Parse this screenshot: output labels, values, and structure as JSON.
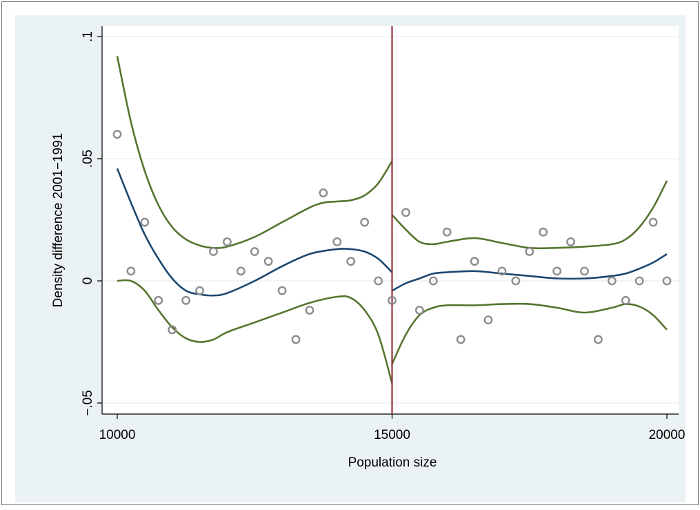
{
  "chart_data": {
    "type": "scatter",
    "title": "",
    "xlabel": "Population size",
    "ylabel": "Density difference 2001−1991",
    "xlim": [
      10000,
      20000
    ],
    "ylim": [
      -0.05,
      0.1
    ],
    "x_ticks": [
      10000,
      15000,
      20000
    ],
    "x_tick_labels": [
      "10000",
      "15000",
      "20000"
    ],
    "y_ticks": [
      -0.05,
      0,
      0.05,
      0.1
    ],
    "y_tick_labels": [
      "−.05",
      "0",
      ".05",
      ".1"
    ],
    "grid": true,
    "legend": "none",
    "cutoff": {
      "x": 15000
    },
    "points": [
      {
        "x": 10000,
        "y": 0.06
      },
      {
        "x": 10250,
        "y": 0.004
      },
      {
        "x": 10500,
        "y": 0.024
      },
      {
        "x": 10750,
        "y": -0.008
      },
      {
        "x": 11000,
        "y": -0.02
      },
      {
        "x": 11250,
        "y": -0.008
      },
      {
        "x": 11500,
        "y": -0.004
      },
      {
        "x": 11750,
        "y": 0.012
      },
      {
        "x": 12000,
        "y": 0.016
      },
      {
        "x": 12250,
        "y": 0.004
      },
      {
        "x": 12500,
        "y": 0.012
      },
      {
        "x": 12750,
        "y": 0.008
      },
      {
        "x": 13000,
        "y": -0.004
      },
      {
        "x": 13250,
        "y": -0.024
      },
      {
        "x": 13500,
        "y": -0.012
      },
      {
        "x": 13750,
        "y": 0.036
      },
      {
        "x": 14000,
        "y": 0.016
      },
      {
        "x": 14250,
        "y": 0.008
      },
      {
        "x": 14500,
        "y": 0.024
      },
      {
        "x": 14750,
        "y": 0.0
      },
      {
        "x": 15000,
        "y": -0.008
      },
      {
        "x": 15250,
        "y": 0.028
      },
      {
        "x": 15500,
        "y": -0.012
      },
      {
        "x": 15750,
        "y": 0.0
      },
      {
        "x": 16000,
        "y": 0.02
      },
      {
        "x": 16250,
        "y": -0.024
      },
      {
        "x": 16500,
        "y": 0.008
      },
      {
        "x": 16750,
        "y": -0.016
      },
      {
        "x": 17000,
        "y": 0.004
      },
      {
        "x": 17250,
        "y": 0.0
      },
      {
        "x": 17500,
        "y": 0.012
      },
      {
        "x": 17750,
        "y": 0.02
      },
      {
        "x": 18000,
        "y": 0.004
      },
      {
        "x": 18250,
        "y": 0.016
      },
      {
        "x": 18500,
        "y": 0.004
      },
      {
        "x": 18750,
        "y": -0.024
      },
      {
        "x": 19000,
        "y": 0.0
      },
      {
        "x": 19250,
        "y": -0.008
      },
      {
        "x": 19500,
        "y": 0.0
      },
      {
        "x": 19750,
        "y": 0.024
      },
      {
        "x": 20000,
        "y": 0.0
      }
    ],
    "fit_left": {
      "x": [
        10000,
        10250,
        10500,
        10750,
        11000,
        11250,
        11500,
        11750,
        12000,
        12500,
        13000,
        13500,
        14000,
        14250,
        14500,
        14750,
        15000
      ],
      "y": [
        0.046,
        0.032,
        0.019,
        0.009,
        0.001,
        -0.004,
        -0.0055,
        -0.006,
        -0.005,
        0.0,
        0.006,
        0.011,
        0.013,
        0.013,
        0.012,
        0.009,
        0.0035
      ]
    },
    "fit_right": {
      "x": [
        15000,
        15250,
        15500,
        15750,
        16000,
        16500,
        17000,
        17500,
        18000,
        18500,
        19000,
        19250,
        19500,
        19750,
        20000
      ],
      "y": [
        -0.004,
        -0.001,
        0.001,
        0.003,
        0.0035,
        0.004,
        0.003,
        0.002,
        0.001,
        0.001,
        0.002,
        0.003,
        0.005,
        0.0075,
        0.011
      ]
    },
    "ci_upper_left": {
      "x": [
        10000,
        10250,
        10500,
        10750,
        11000,
        11250,
        11500,
        11750,
        12000,
        12500,
        13000,
        13500,
        13750,
        14000,
        14250,
        14500,
        14750,
        15000
      ],
      "y": [
        0.092,
        0.065,
        0.045,
        0.031,
        0.022,
        0.017,
        0.0145,
        0.0135,
        0.014,
        0.018,
        0.024,
        0.03,
        0.032,
        0.0325,
        0.033,
        0.035,
        0.04,
        0.049
      ]
    },
    "ci_lower_left": {
      "x": [
        10000,
        10250,
        10500,
        10750,
        11000,
        11250,
        11500,
        11750,
        12000,
        12500,
        13000,
        13500,
        14000,
        14250,
        14500,
        14750,
        15000
      ],
      "y": [
        0.0,
        0.0,
        -0.004,
        -0.012,
        -0.019,
        -0.0235,
        -0.025,
        -0.024,
        -0.021,
        -0.017,
        -0.013,
        -0.009,
        -0.0065,
        -0.007,
        -0.012,
        -0.022,
        -0.042
      ]
    },
    "ci_upper_right": {
      "x": [
        15000,
        15250,
        15500,
        15750,
        16000,
        16500,
        17000,
        17500,
        18000,
        18500,
        19000,
        19250,
        19500,
        19750,
        20000
      ],
      "y": [
        0.027,
        0.021,
        0.016,
        0.015,
        0.016,
        0.0175,
        0.0155,
        0.0135,
        0.0135,
        0.014,
        0.015,
        0.017,
        0.022,
        0.03,
        0.041
      ]
    },
    "ci_lower_right": {
      "x": [
        15000,
        15250,
        15500,
        15750,
        16000,
        16500,
        17000,
        17500,
        18000,
        18500,
        19000,
        19250,
        19500,
        19750,
        20000
      ],
      "y": [
        -0.034,
        -0.022,
        -0.014,
        -0.011,
        -0.01,
        -0.01,
        -0.0095,
        -0.0095,
        -0.011,
        -0.013,
        -0.011,
        -0.0095,
        -0.0105,
        -0.014,
        -0.02
      ]
    },
    "colors": {
      "outer_background": "#eaf2f3",
      "plot_background": "#ffffff",
      "grid": "#e8eeee",
      "fit": "#1a476f",
      "ci": "#55752f",
      "cutoff": "#90353b",
      "marker": "#8c8c8c"
    }
  }
}
